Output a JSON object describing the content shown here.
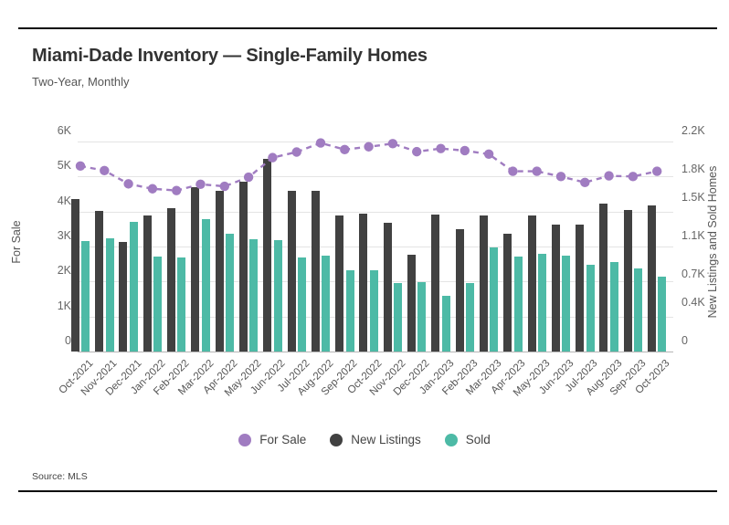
{
  "header": {
    "title": "Miami-Dade Inventory — Single-Family Homes",
    "subtitle": "Two-Year, Monthly"
  },
  "footer": {
    "source": "Source: MLS"
  },
  "colors": {
    "for_sale": "#a07cc1",
    "new_listings": "#414141",
    "sold": "#4dbaa6",
    "gridline": "#e4e4e4",
    "axis_line": "#b5b5b5"
  },
  "legend": [
    {
      "label": "For Sale",
      "color": "#a07cc1"
    },
    {
      "label": "New Listings",
      "color": "#414141"
    },
    {
      "label": "Sold",
      "color": "#4dbaa6"
    }
  ],
  "chart_data": {
    "type": "bar",
    "title": "Miami-Dade Inventory — Single-Family Homes",
    "subtitle": "Two-Year, Monthly",
    "grid": true,
    "legend_position": "bottom",
    "categories": [
      "Oct-2021",
      "Nov-2021",
      "Dec-2021",
      "Jan-2022",
      "Feb-2022",
      "Mar-2022",
      "Apr-2022",
      "May-2022",
      "Jun-2022",
      "Jul-2022",
      "Aug-2022",
      "Sep-2022",
      "Oct-2022",
      "Nov-2022",
      "Dec-2022",
      "Jan-2023",
      "Feb-2023",
      "Mar-2023",
      "Apr-2023",
      "May-2023",
      "Jun-2023",
      "Jul-2023",
      "Aug-2023",
      "Sep-2023",
      "Oct-2023"
    ],
    "series": [
      {
        "name": "For Sale",
        "kind": "line",
        "axis": "left",
        "color": "#a07cc1",
        "values": [
          5300,
          5170,
          4790,
          4650,
          4600,
          4780,
          4720,
          4980,
          5540,
          5700,
          5960,
          5770,
          5850,
          5940,
          5710,
          5800,
          5740,
          5640,
          5150,
          5150,
          5000,
          4830,
          5020,
          5000,
          5150
        ]
      },
      {
        "name": "New Listings",
        "kind": "bar",
        "axis": "right",
        "color": "#414141",
        "values": [
          1595,
          1475,
          1150,
          1430,
          1500,
          1725,
          1685,
          1780,
          2015,
          1685,
          1685,
          1425,
          1440,
          1345,
          1015,
          1435,
          1285,
          1430,
          1235,
          1425,
          1330,
          1325,
          1545,
          1480,
          1535
        ]
      },
      {
        "name": "Sold",
        "kind": "bar",
        "axis": "right",
        "color": "#4dbaa6",
        "values": [
          1155,
          1185,
          1360,
          995,
          985,
          1385,
          1235,
          1175,
          1170,
          985,
          1005,
          850,
          850,
          720,
          725,
          580,
          720,
          1090,
          995,
          1025,
          1005,
          910,
          940,
          875,
          780
        ]
      }
    ],
    "left_axis": {
      "label": "For Sale",
      "min": 0,
      "max": 6000,
      "ticks": [
        {
          "label": "0",
          "value": 0
        },
        {
          "label": "1K",
          "value": 1000
        },
        {
          "label": "2K",
          "value": 2000
        },
        {
          "label": "3K",
          "value": 3000
        },
        {
          "label": "4K",
          "value": 4000
        },
        {
          "label": "5K",
          "value": 5000
        },
        {
          "label": "6K",
          "value": 6000
        }
      ]
    },
    "right_axis": {
      "label": "New Listings and Sold Homes",
      "min": 0,
      "max": 2200,
      "ticks": [
        {
          "label": "0",
          "value": 0
        },
        {
          "label": "0.4K",
          "value": 400
        },
        {
          "label": "0.7K",
          "value": 700
        },
        {
          "label": "1.1K",
          "value": 1100
        },
        {
          "label": "1.5K",
          "value": 1500
        },
        {
          "label": "1.8K",
          "value": 1800
        },
        {
          "label": "2.2K",
          "value": 2200
        }
      ]
    }
  }
}
